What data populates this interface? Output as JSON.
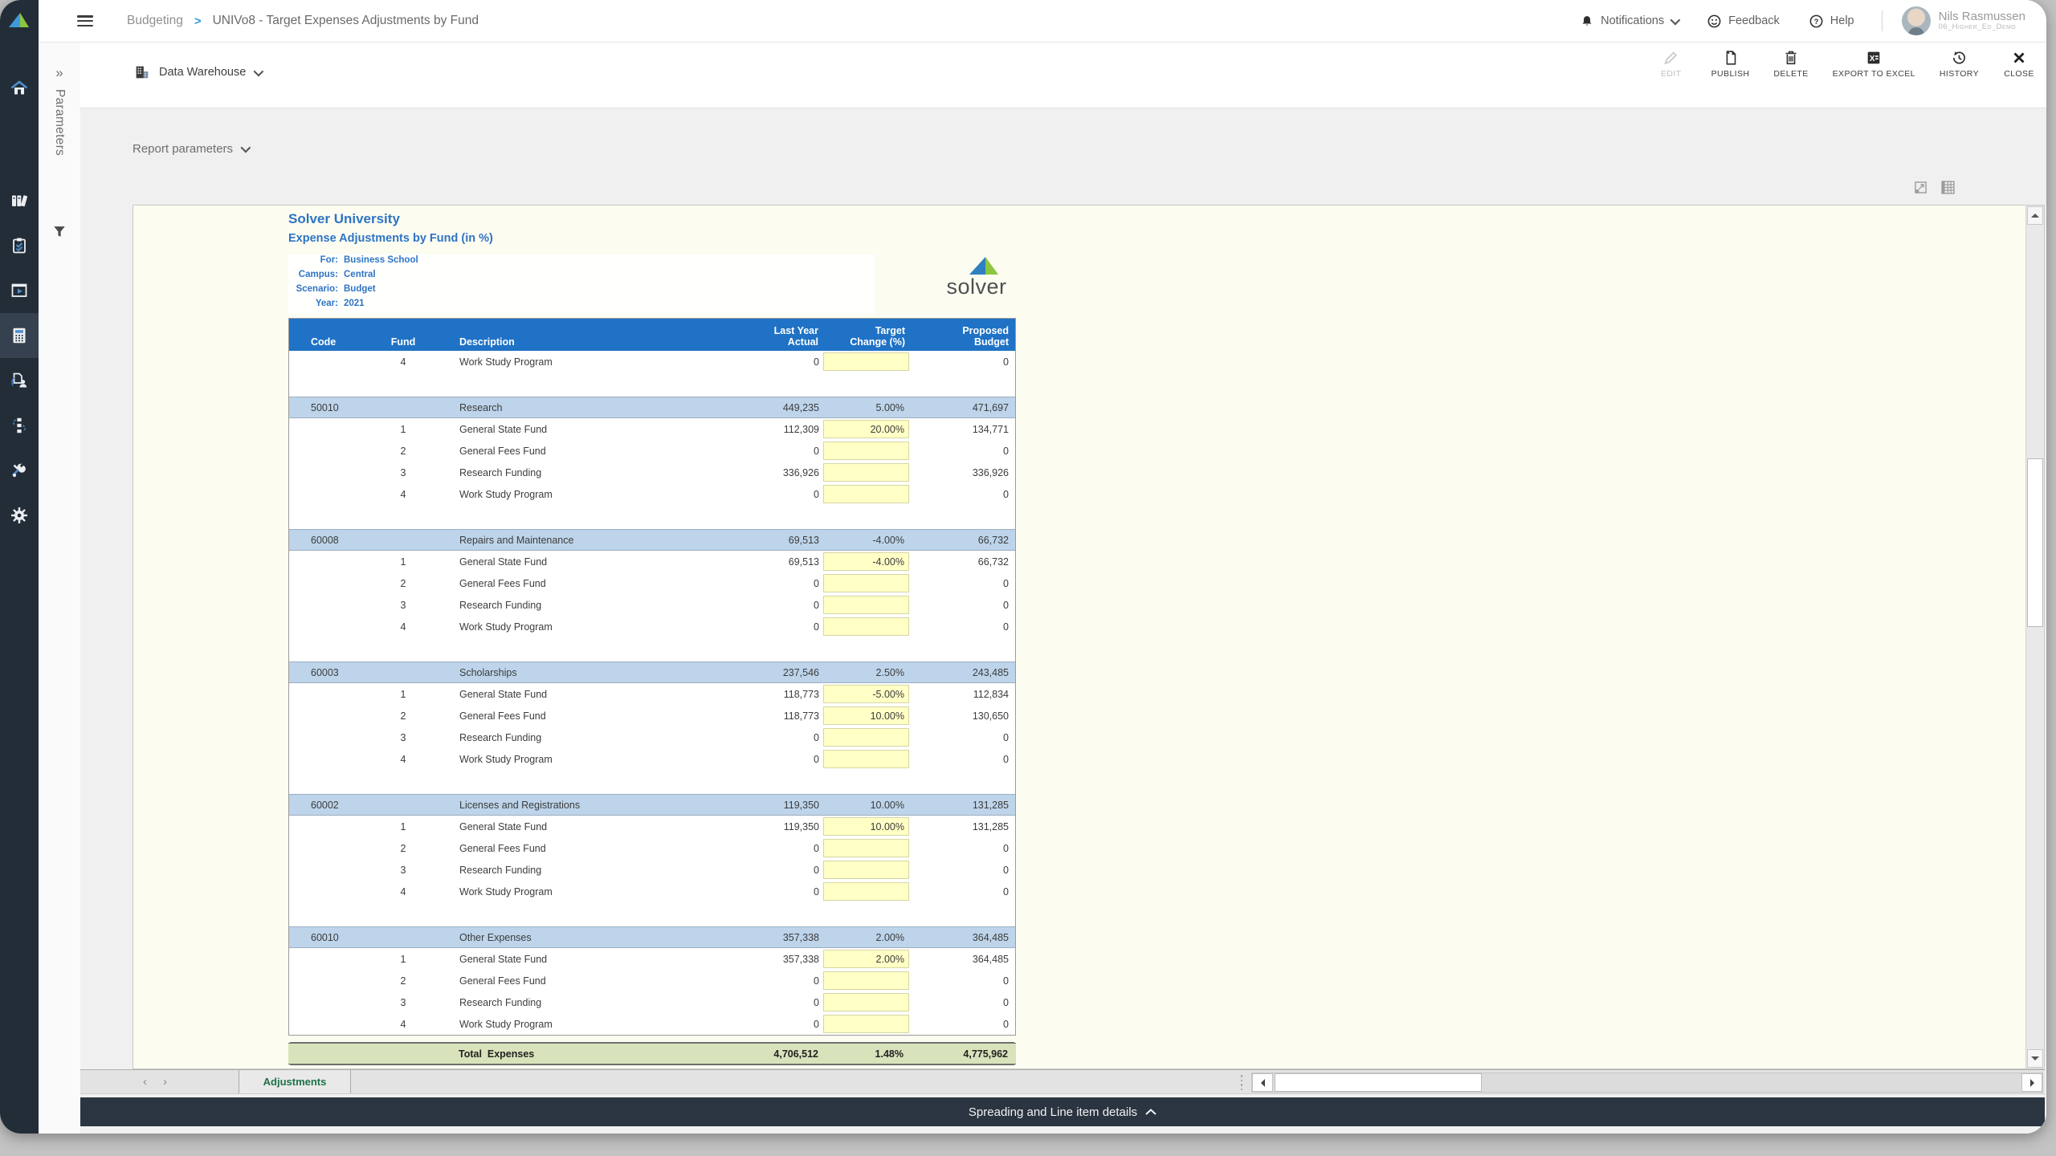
{
  "topbar": {
    "breadcrumb": {
      "section": "Budgeting",
      "separator": ">",
      "title": "UNIVo8 - Target Expenses Adjustments by Fund"
    },
    "notifications_label": "Notifications",
    "feedback_label": "Feedback",
    "help_label": "Help",
    "user": {
      "name": "Nils Rasmussen",
      "context": "06_Higher_Ed_Demo"
    }
  },
  "rail": {
    "label": "Parameters"
  },
  "toolbar": {
    "source_label": "Data Warehouse",
    "actions": [
      {
        "label": "EDIT",
        "disabled": true
      },
      {
        "label": "PUBLISH",
        "disabled": false
      },
      {
        "label": "DELETE",
        "disabled": false
      },
      {
        "label": "EXPORT TO EXCEL",
        "disabled": false
      },
      {
        "label": "HISTORY",
        "disabled": false
      },
      {
        "label": "CLOSE",
        "disabled": false
      }
    ]
  },
  "report_params": {
    "label": "Report parameters"
  },
  "report": {
    "title": "Solver University",
    "subtitle": "Expense Adjustments by Fund (in %)",
    "meta": [
      {
        "label": "For:",
        "value": "Business School"
      },
      {
        "label": "Campus:",
        "value": "Central"
      },
      {
        "label": "Scenario:",
        "value": "Budget"
      },
      {
        "label": "Year:",
        "value": "2021"
      }
    ],
    "logo_text": "solver",
    "table": {
      "columns": [
        [
          "",
          "Code"
        ],
        [
          "",
          "Fund"
        ],
        [
          "",
          "Description"
        ],
        [
          "Last Year",
          "Actual"
        ],
        [
          "Target",
          "Change (%)"
        ],
        [
          "Proposed",
          "Budget"
        ]
      ],
      "orphan_rows": [
        {
          "fund": "4",
          "description": "Work Study Program",
          "actual": "0",
          "change": "",
          "budget": "0"
        }
      ],
      "sections": [
        {
          "code": "50010",
          "name": "Research",
          "actual": "449,235",
          "change": "5.00%",
          "budget": "471,697",
          "rows": [
            {
              "fund": "1",
              "description": "General State Fund",
              "actual": "112,309",
              "change": "20.00%",
              "budget": "134,771"
            },
            {
              "fund": "2",
              "description": "General Fees Fund",
              "actual": "0",
              "change": "",
              "budget": "0"
            },
            {
              "fund": "3",
              "description": "Research Funding",
              "actual": "336,926",
              "change": "",
              "budget": "336,926"
            },
            {
              "fund": "4",
              "description": "Work Study Program",
              "actual": "0",
              "change": "",
              "budget": "0"
            }
          ]
        },
        {
          "code": "60008",
          "name": "Repairs and Maintenance",
          "actual": "69,513",
          "change": "-4.00%",
          "budget": "66,732",
          "rows": [
            {
              "fund": "1",
              "description": "General State Fund",
              "actual": "69,513",
              "change": "-4.00%",
              "budget": "66,732"
            },
            {
              "fund": "2",
              "description": "General Fees Fund",
              "actual": "0",
              "change": "",
              "budget": "0"
            },
            {
              "fund": "3",
              "description": "Research Funding",
              "actual": "0",
              "change": "",
              "budget": "0"
            },
            {
              "fund": "4",
              "description": "Work Study Program",
              "actual": "0",
              "change": "",
              "budget": "0"
            }
          ]
        },
        {
          "code": "60003",
          "name": "Scholarships",
          "actual": "237,546",
          "change": "2.50%",
          "budget": "243,485",
          "rows": [
            {
              "fund": "1",
              "description": "General State Fund",
              "actual": "118,773",
              "change": "-5.00%",
              "budget": "112,834"
            },
            {
              "fund": "2",
              "description": "General Fees Fund",
              "actual": "118,773",
              "change": "10.00%",
              "budget": "130,650"
            },
            {
              "fund": "3",
              "description": "Research Funding",
              "actual": "0",
              "change": "",
              "budget": "0"
            },
            {
              "fund": "4",
              "description": "Work Study Program",
              "actual": "0",
              "change": "",
              "budget": "0"
            }
          ]
        },
        {
          "code": "60002",
          "name": "Licenses and Registrations",
          "actual": "119,350",
          "change": "10.00%",
          "budget": "131,285",
          "rows": [
            {
              "fund": "1",
              "description": "General State Fund",
              "actual": "119,350",
              "change": "10.00%",
              "budget": "131,285"
            },
            {
              "fund": "2",
              "description": "General Fees Fund",
              "actual": "0",
              "change": "",
              "budget": "0"
            },
            {
              "fund": "3",
              "description": "Research Funding",
              "actual": "0",
              "change": "",
              "budget": "0"
            },
            {
              "fund": "4",
              "description": "Work Study Program",
              "actual": "0",
              "change": "",
              "budget": "0"
            }
          ]
        },
        {
          "code": "60010",
          "name": "Other Expenses",
          "actual": "357,338",
          "change": "2.00%",
          "budget": "364,485",
          "rows": [
            {
              "fund": "1",
              "description": "General State Fund",
              "actual": "357,338",
              "change": "2.00%",
              "budget": "364,485"
            },
            {
              "fund": "2",
              "description": "General Fees Fund",
              "actual": "0",
              "change": "",
              "budget": "0"
            },
            {
              "fund": "3",
              "description": "Research Funding",
              "actual": "0",
              "change": "",
              "budget": "0"
            },
            {
              "fund": "4",
              "description": "Work Study Program",
              "actual": "0",
              "change": "",
              "budget": "0"
            }
          ]
        }
      ],
      "total": {
        "label": "Total  Expenses",
        "actual": "4,706,512",
        "change": "1.48%",
        "budget": "4,775,962"
      }
    }
  },
  "sheet_tabs": {
    "active": "Adjustments"
  },
  "details_bar": {
    "label": "Spreading and Line item details"
  },
  "colors": {
    "sidebar_navy": "#232d38",
    "header_blue": "#1f72c5",
    "section_blue": "#bdd4ea",
    "input_yellow": "#ffffc6",
    "total_green": "#d8e3bb",
    "tab_green": "#1e7145",
    "title_blue": "#2e74c4",
    "details_bar_navy": "#2b3541"
  }
}
